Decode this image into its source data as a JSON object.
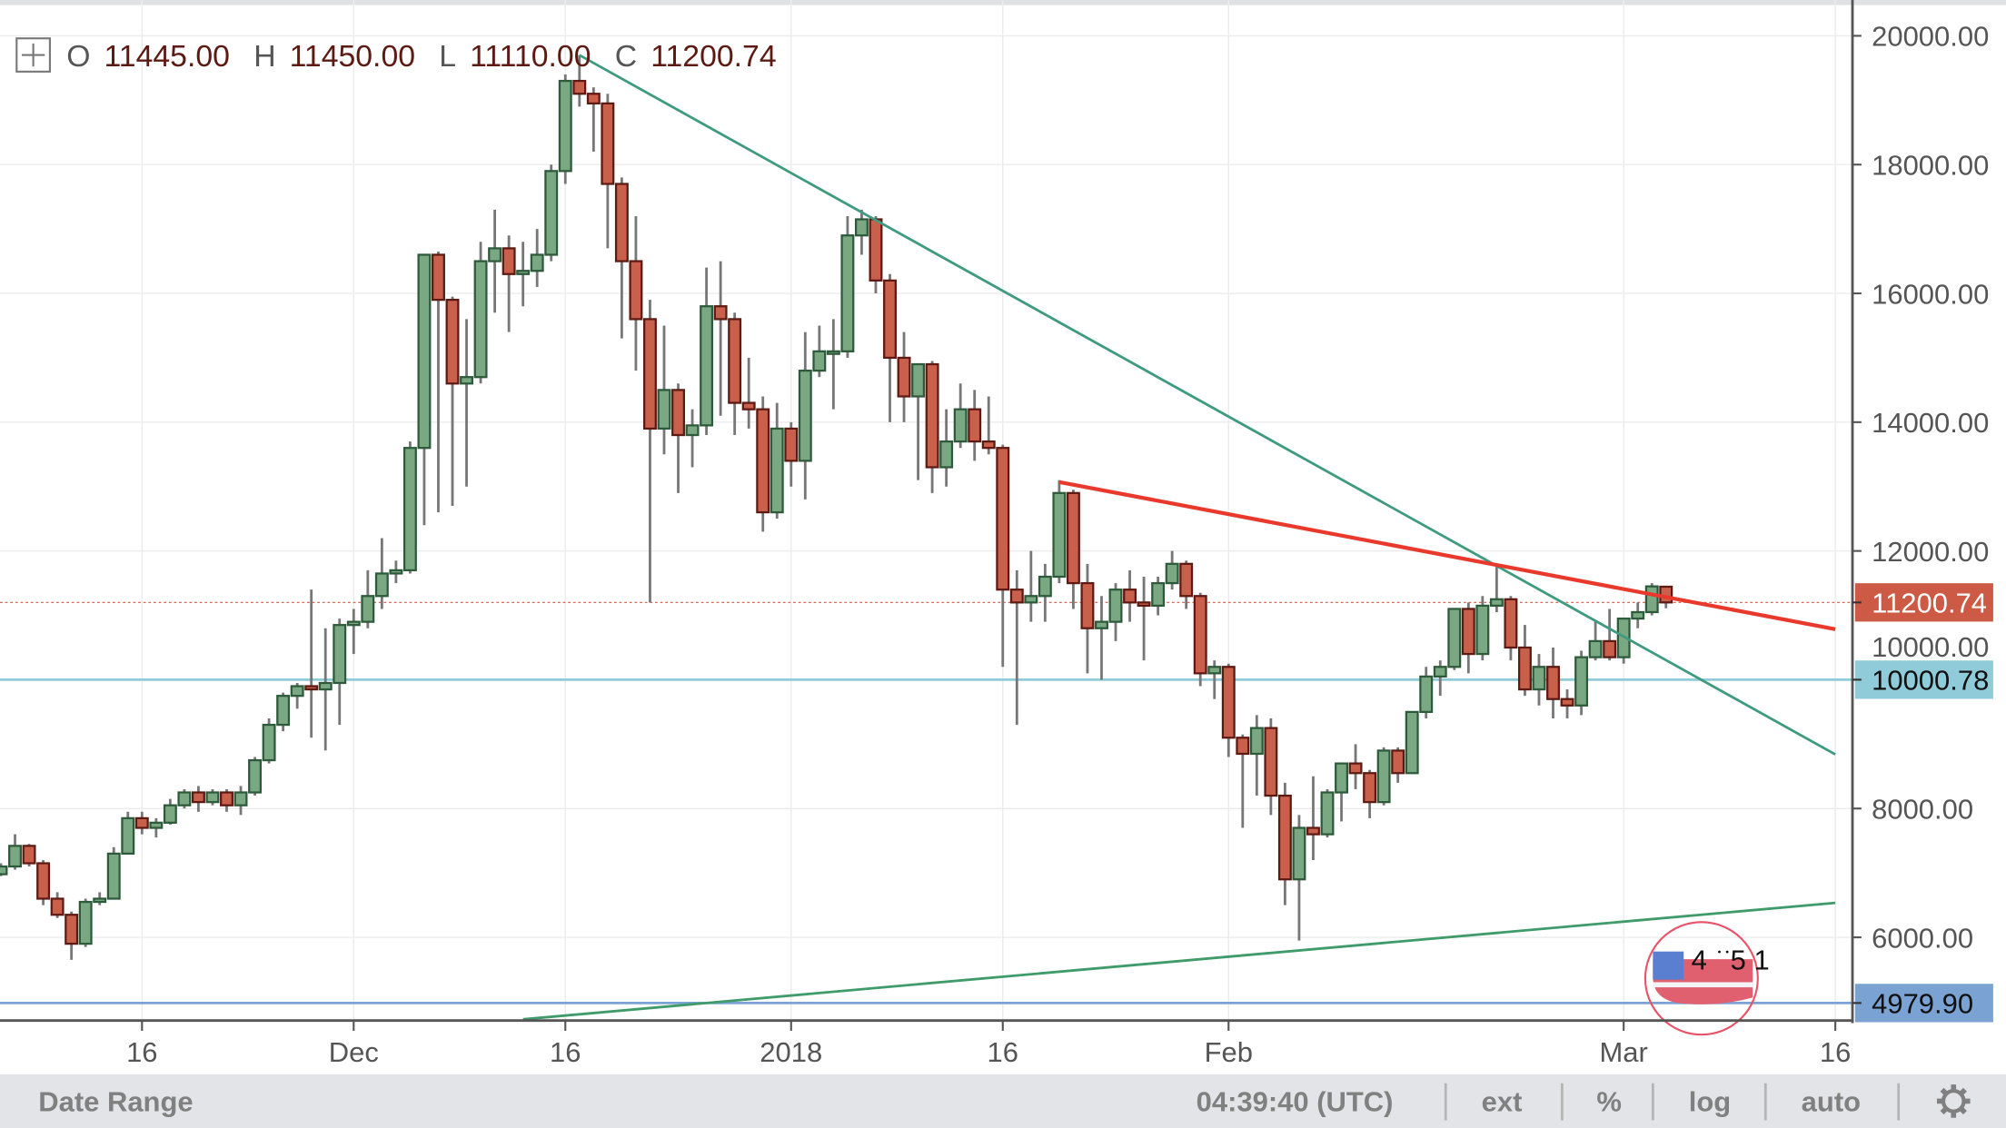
{
  "header": {
    "open_label": "O",
    "open": "11445.00",
    "high_label": "H",
    "high": "11450.00",
    "low_label": "L",
    "low": "11110.00",
    "close_label": "C",
    "close": "11200.74"
  },
  "chart_data": {
    "type": "candlestick",
    "title": "",
    "xlabel": "",
    "ylabel": "",
    "ylim": [
      4728,
      20556
    ],
    "grid": true,
    "y_ticks": [
      "6000.00",
      "8000.00",
      "10000.00",
      "12000.00",
      "14000.00",
      "16000.00",
      "18000.00",
      "20000.00"
    ],
    "y_tick_values": [
      6000,
      8000,
      10000,
      12000,
      14000,
      16000,
      18000,
      20000
    ],
    "x_ticks": [
      {
        "date": "2017-11-16",
        "label": "16"
      },
      {
        "date": "2017-12-01",
        "label": "Dec"
      },
      {
        "date": "2017-12-16",
        "label": "16"
      },
      {
        "date": "2018-01-01",
        "label": "2018"
      },
      {
        "date": "2018-01-16",
        "label": "16"
      },
      {
        "date": "2018-02-01",
        "label": "Feb"
      },
      {
        "date": "2018-03-01",
        "label": "Mar"
      },
      {
        "date": "2018-03-16",
        "label": "16"
      }
    ],
    "candles": [
      [
        "2017-11-06",
        6980,
        7150,
        6950,
        7100
      ],
      [
        "2017-11-07",
        7100,
        7600,
        7050,
        7420
      ],
      [
        "2017-11-08",
        7420,
        7450,
        7100,
        7150
      ],
      [
        "2017-11-09",
        7150,
        7200,
        6500,
        6600
      ],
      [
        "2017-11-10",
        6600,
        6700,
        6300,
        6350
      ],
      [
        "2017-11-11",
        6350,
        6400,
        5650,
        5900
      ],
      [
        "2017-11-12",
        5900,
        6600,
        5850,
        6550
      ],
      [
        "2017-11-13",
        6550,
        6700,
        6500,
        6600
      ],
      [
        "2017-11-14",
        6600,
        7400,
        6600,
        7300
      ],
      [
        "2017-11-15",
        7300,
        7950,
        7300,
        7850
      ],
      [
        "2017-11-16",
        7850,
        7950,
        7600,
        7700
      ],
      [
        "2017-11-17",
        7700,
        7850,
        7550,
        7780
      ],
      [
        "2017-11-18",
        7780,
        8150,
        7750,
        8050
      ],
      [
        "2017-11-19",
        8050,
        8300,
        8000,
        8250
      ],
      [
        "2017-11-20",
        8250,
        8350,
        7950,
        8100
      ],
      [
        "2017-11-21",
        8100,
        8300,
        8050,
        8250
      ],
      [
        "2017-11-22",
        8250,
        8300,
        7950,
        8050
      ],
      [
        "2017-11-23",
        8050,
        8350,
        7900,
        8250
      ],
      [
        "2017-11-24",
        8250,
        8800,
        8200,
        8750
      ],
      [
        "2017-11-25",
        8750,
        9400,
        8700,
        9300
      ],
      [
        "2017-11-26",
        9300,
        9800,
        9200,
        9750
      ],
      [
        "2017-11-27",
        9750,
        9950,
        9550,
        9900
      ],
      [
        "2017-11-28",
        9900,
        11400,
        9100,
        9850
      ],
      [
        "2017-11-29",
        9850,
        10800,
        8900,
        9950
      ],
      [
        "2017-11-30",
        9950,
        10950,
        9300,
        10850
      ],
      [
        "2017-12-01",
        10850,
        11100,
        10400,
        10900
      ],
      [
        "2017-12-02",
        10900,
        11700,
        10800,
        11300
      ],
      [
        "2017-12-03",
        11300,
        12200,
        11100,
        11650
      ],
      [
        "2017-12-04",
        11650,
        11850,
        11500,
        11700
      ],
      [
        "2017-12-05",
        11700,
        13700,
        11650,
        13600
      ],
      [
        "2017-12-06",
        13600,
        16600,
        12400,
        16600
      ],
      [
        "2017-12-07",
        16600,
        16650,
        12600,
        15900
      ],
      [
        "2017-12-08",
        15900,
        15950,
        12700,
        14600
      ],
      [
        "2017-12-09",
        14600,
        15600,
        13000,
        14700
      ],
      [
        "2017-12-10",
        14700,
        16800,
        14600,
        16500
      ],
      [
        "2017-12-11",
        16500,
        17300,
        15700,
        16700
      ],
      [
        "2017-12-12",
        16700,
        16900,
        15400,
        16300
      ],
      [
        "2017-12-13",
        16300,
        16800,
        15800,
        16350
      ],
      [
        "2017-12-14",
        16350,
        17000,
        16100,
        16600
      ],
      [
        "2017-12-15",
        16600,
        18000,
        16500,
        17900
      ],
      [
        "2017-12-16",
        17900,
        19400,
        17700,
        19300
      ],
      [
        "2017-12-17",
        19300,
        19700,
        18900,
        19100
      ],
      [
        "2017-12-18",
        19100,
        19200,
        18200,
        18950
      ],
      [
        "2017-12-19",
        18950,
        19100,
        16700,
        17700
      ],
      [
        "2017-12-20",
        17700,
        17800,
        15300,
        16500
      ],
      [
        "2017-12-21",
        16500,
        17200,
        14800,
        15600
      ],
      [
        "2017-12-22",
        15600,
        15900,
        11200,
        13900
      ],
      [
        "2017-12-23",
        13900,
        15500,
        13500,
        14500
      ],
      [
        "2017-12-24",
        14500,
        14600,
        12900,
        13800
      ],
      [
        "2017-12-25",
        13800,
        14200,
        13300,
        13950
      ],
      [
        "2017-12-26",
        13950,
        16400,
        13800,
        15800
      ],
      [
        "2017-12-27",
        15800,
        16500,
        14100,
        15600
      ],
      [
        "2017-12-28",
        15600,
        15700,
        13800,
        14300
      ],
      [
        "2017-12-29",
        14300,
        15000,
        13900,
        14200
      ],
      [
        "2017-12-30",
        14200,
        14400,
        12300,
        12600
      ],
      [
        "2017-12-31",
        12600,
        14300,
        12500,
        13900
      ],
      [
        "2018-01-01",
        13900,
        14000,
        13000,
        13400
      ],
      [
        "2018-01-02",
        13400,
        15400,
        12800,
        14800
      ],
      [
        "2018-01-03",
        14800,
        15500,
        14700,
        15100
      ],
      [
        "2018-01-04",
        15100,
        15600,
        14200,
        15100
      ],
      [
        "2018-01-05",
        15100,
        17200,
        15000,
        16900
      ],
      [
        "2018-01-06",
        16900,
        17300,
        16600,
        17150
      ],
      [
        "2018-01-07",
        17150,
        17200,
        16000,
        16200
      ],
      [
        "2018-01-08",
        16200,
        16300,
        14000,
        15000
      ],
      [
        "2018-01-09",
        15000,
        15400,
        14000,
        14400
      ],
      [
        "2018-01-10",
        14400,
        14900,
        13100,
        14900
      ],
      [
        "2018-01-11",
        14900,
        14950,
        12900,
        13300
      ],
      [
        "2018-01-12",
        13300,
        14200,
        13000,
        13700
      ],
      [
        "2018-01-13",
        13700,
        14600,
        13600,
        14200
      ],
      [
        "2018-01-14",
        14200,
        14500,
        13400,
        13700
      ],
      [
        "2018-01-15",
        13700,
        14400,
        13500,
        13600
      ],
      [
        "2018-01-16",
        13600,
        13650,
        10200,
        11400
      ],
      [
        "2018-01-17",
        11400,
        11700,
        9300,
        11200
      ],
      [
        "2018-01-18",
        11200,
        12000,
        10900,
        11300
      ],
      [
        "2018-01-19",
        11300,
        11800,
        10900,
        11600
      ],
      [
        "2018-01-20",
        11600,
        13100,
        11500,
        12900
      ],
      [
        "2018-01-21",
        12900,
        12950,
        11100,
        11500
      ],
      [
        "2018-01-22",
        11500,
        11800,
        10100,
        10800
      ],
      [
        "2018-01-23",
        10800,
        11300,
        10000,
        10900
      ],
      [
        "2018-01-24",
        10900,
        11500,
        10600,
        11400
      ],
      [
        "2018-01-25",
        11400,
        11700,
        10900,
        11200
      ],
      [
        "2018-01-26",
        11200,
        11600,
        10300,
        11150
      ],
      [
        "2018-01-27",
        11150,
        11600,
        11000,
        11500
      ],
      [
        "2018-01-28",
        11500,
        12000,
        11400,
        11800
      ],
      [
        "2018-01-29",
        11800,
        11850,
        11100,
        11300
      ],
      [
        "2018-01-30",
        11300,
        11350,
        9900,
        10100
      ],
      [
        "2018-01-31",
        10100,
        10300,
        9700,
        10200
      ],
      [
        "2018-02-01",
        10200,
        10250,
        8800,
        9100
      ],
      [
        "2018-02-02",
        9100,
        9150,
        7700,
        8850
      ],
      [
        "2018-02-03",
        8850,
        9450,
        8200,
        9250
      ],
      [
        "2018-02-04",
        9250,
        9400,
        7900,
        8200
      ],
      [
        "2018-02-05",
        8200,
        8400,
        6500,
        6900
      ],
      [
        "2018-02-06",
        6900,
        7900,
        5950,
        7700
      ],
      [
        "2018-02-07",
        7700,
        8500,
        7200,
        7600
      ],
      [
        "2018-02-08",
        7600,
        8300,
        7550,
        8250
      ],
      [
        "2018-02-09",
        8250,
        8700,
        7800,
        8700
      ],
      [
        "2018-02-10",
        8700,
        9000,
        8300,
        8550
      ],
      [
        "2018-02-11",
        8550,
        8600,
        7850,
        8100
      ],
      [
        "2018-02-12",
        8100,
        8950,
        8050,
        8900
      ],
      [
        "2018-02-13",
        8900,
        8950,
        8400,
        8550
      ],
      [
        "2018-02-14",
        8550,
        9500,
        8550,
        9500
      ],
      [
        "2018-02-15",
        9500,
        10200,
        9400,
        10050
      ],
      [
        "2018-02-16",
        10050,
        10300,
        9750,
        10200
      ],
      [
        "2018-02-17",
        10200,
        11100,
        10150,
        11100
      ],
      [
        "2018-02-18",
        11100,
        11200,
        10100,
        10400
      ],
      [
        "2018-02-19",
        10400,
        11300,
        10300,
        11150
      ],
      [
        "2018-02-20",
        11150,
        11750,
        11050,
        11250
      ],
      [
        "2018-02-21",
        11250,
        11300,
        10300,
        10500
      ],
      [
        "2018-02-22",
        10500,
        10850,
        9750,
        9850
      ],
      [
        "2018-02-23",
        9850,
        10400,
        9600,
        10200
      ],
      [
        "2018-02-24",
        10200,
        10500,
        9400,
        9700
      ],
      [
        "2018-02-25",
        9700,
        9850,
        9400,
        9600
      ],
      [
        "2018-02-26",
        9600,
        10450,
        9450,
        10350
      ],
      [
        "2018-02-27",
        10350,
        10900,
        10300,
        10600
      ],
      [
        "2018-02-28",
        10600,
        11100,
        10300,
        10350
      ],
      [
        "2018-03-01",
        10350,
        10950,
        10250,
        10950
      ],
      [
        "2018-03-02",
        10950,
        11200,
        10800,
        11050
      ],
      [
        "2018-03-03",
        11050,
        11500,
        11000,
        11450
      ],
      [
        "2018-03-04",
        11445,
        11450,
        11110,
        11200.74
      ]
    ],
    "trendlines": [
      {
        "color": "#3f9b7f",
        "from": [
          "2017-12-17",
          19700
        ],
        "to": [
          "2018-03-16",
          8840
        ]
      },
      {
        "color": "#e8392c",
        "from": [
          "2018-01-20",
          13070
        ],
        "to": [
          "2018-03-16",
          10785
        ]
      },
      {
        "color": "#3f9b6a",
        "from": [
          "2017-12-13",
          4727
        ],
        "to": [
          "2018-03-16",
          6535
        ]
      }
    ],
    "horizontal_lines": [
      {
        "value": 10000.78,
        "label": "10000.78",
        "color": "#8fcbd8",
        "text_color": "#111111"
      },
      {
        "value": 4979.9,
        "label": "4979.90",
        "color": "#7aa3d4",
        "text_color": "#111111"
      }
    ],
    "last_price": {
      "value": 11200.74,
      "label": "11200.74",
      "color": "#cc5a44",
      "text_color": "#ffffff"
    },
    "colors": {
      "up_fill": "#7aa882",
      "up_border": "#2d5a3a",
      "down_fill": "#c9604c",
      "down_border": "#5c1a13",
      "wick": "#777777"
    }
  },
  "bottom_bar": {
    "date_range": "Date Range",
    "time": "04:39:40 (UTC)",
    "ext": "ext",
    "percent": "%",
    "log": "log",
    "auto": "auto",
    "auto_color": "#6ec1e4",
    "settings_icon": "gear-icon"
  },
  "logo": {
    "icon": "us-flag-logo",
    "text": "4 ? ? 5 1"
  }
}
